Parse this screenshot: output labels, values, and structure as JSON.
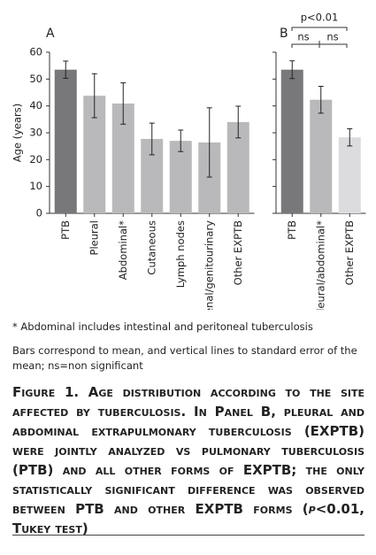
{
  "chart_data": [
    {
      "type": "bar",
      "title": "A",
      "ylabel": "Age (years)",
      "categories": [
        "PTB",
        "Pleural",
        "Abdominal*",
        "Cutaneous",
        "Lymph nodes",
        "Renal/genitourinary",
        "Other EXPTB"
      ],
      "values": [
        53.5,
        43.8,
        40.9,
        27.7,
        27,
        26.4,
        34
      ],
      "errors": [
        3.2,
        8.2,
        7.7,
        5.9,
        4,
        12.9,
        5.9
      ],
      "colors": [
        "#78787b",
        "#b9b9bb",
        "#b9b9bb",
        "#b9b9bb",
        "#b9b9bb",
        "#b9b9bb",
        "#b9b9bb"
      ],
      "ylim": [
        0,
        60
      ],
      "yticks": [
        0,
        10,
        20,
        30,
        40,
        50,
        60
      ],
      "ytick_labels": true
    },
    {
      "type": "bar",
      "title": "B",
      "categories": [
        "PTB",
        "Pleural/abdominal*",
        "Other EXPTB"
      ],
      "values": [
        53.5,
        42.3,
        28.3
      ],
      "errors": [
        3.3,
        5,
        3.2
      ],
      "colors": [
        "#78787b",
        "#b9b9bb",
        "#dcdcde"
      ],
      "ylim": [
        0,
        60
      ],
      "yticks": [
        0,
        10,
        20,
        30,
        40,
        50,
        60
      ],
      "ytick_labels": false,
      "annotations": [
        "p<0.01",
        "ns",
        "ns"
      ]
    }
  ],
  "notes": {
    "footnote": "* Abdominal includes intestinal and peritoneal tuberculosis",
    "legend_note": "Bars correspond to mean, and vertical lines to standard error of the mean; ns=non significant",
    "caption_start": "Figure 1. Age distribution according to the site affected by tuberculosis. In Panel B, pleural and abdominal extrapulmonary tuberculosis (EXPTB) were jointly analyzed vs pulmonary tuberculosis (PTB) and all other forms of EXPTB; the only statistically significant difference was observed between PTB and other EXPTB forms (",
    "caption_italic": "p",
    "caption_end": "<0.01, Tukey test)"
  }
}
